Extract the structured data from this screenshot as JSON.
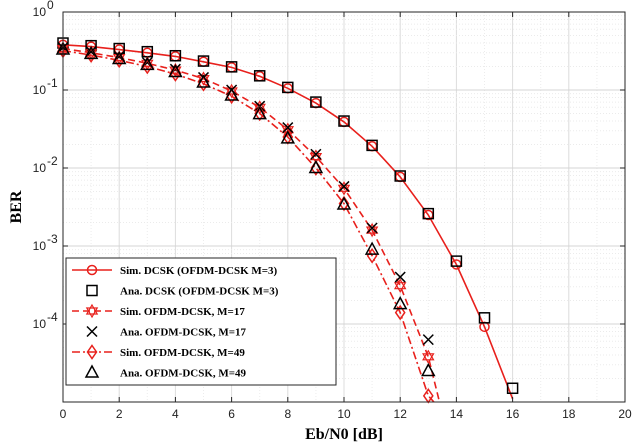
{
  "chart_data": {
    "type": "line",
    "xlabel": "Eb/N0 [dB]",
    "ylabel": "BER",
    "xlim": [
      0,
      20
    ],
    "ylim": [
      1e-05,
      1
    ],
    "yscale": "log",
    "grid": true,
    "legend_position": "bottom-left",
    "x_ticks": [
      0,
      2,
      4,
      6,
      8,
      10,
      12,
      14,
      16,
      18,
      20
    ],
    "x_tick_labels": [
      "0",
      "2",
      "4",
      "6",
      "8",
      "10",
      "12",
      "14",
      "16",
      "18",
      "20"
    ],
    "y_ticks": [
      0.0001,
      0.001,
      0.01,
      0.1,
      1
    ],
    "y_tick_labels": [
      {
        "base": "10",
        "exp": "-4"
      },
      {
        "base": "10",
        "exp": "-3"
      },
      {
        "base": "10",
        "exp": "-2"
      },
      {
        "base": "10",
        "exp": "-1"
      },
      {
        "base": "10",
        "exp": "0"
      }
    ],
    "series": [
      {
        "name": "Sim. DCSK (OFDM-DCSK M=3)",
        "color": "#e8201c",
        "line": "solid",
        "marker": "circle",
        "x": [
          0,
          1,
          2,
          3,
          4,
          5,
          6,
          7,
          8,
          9,
          10,
          11,
          12,
          13,
          14,
          15,
          16
        ],
        "y": [
          0.38,
          0.36,
          0.33,
          0.3,
          0.27,
          0.23,
          0.195,
          0.15,
          0.105,
          0.068,
          0.039,
          0.019,
          0.0077,
          0.0025,
          0.00058,
          9.2e-05,
          1.1e-05
        ]
      },
      {
        "name": "Ana. DCSK (OFDM-DCSK M=3)",
        "color": "#000000",
        "line": "none",
        "marker": "square",
        "x": [
          0,
          1,
          2,
          3,
          4,
          5,
          6,
          7,
          8,
          9,
          10,
          11,
          12,
          13,
          14,
          15,
          16
        ],
        "y": [
          0.4,
          0.37,
          0.34,
          0.31,
          0.275,
          0.235,
          0.198,
          0.152,
          0.108,
          0.07,
          0.04,
          0.0195,
          0.0079,
          0.0026,
          0.00064,
          0.00012,
          1.5e-05
        ]
      },
      {
        "name": "Sim. OFDM-DCSK, M=17",
        "color": "#e8201c",
        "line": "dashed",
        "marker": "hexagram",
        "x": [
          0,
          1,
          2,
          3,
          4,
          5,
          6,
          7,
          8,
          9,
          10,
          11,
          12,
          13,
          13.4
        ],
        "y": [
          0.34,
          0.3,
          0.26,
          0.22,
          0.18,
          0.14,
          0.097,
          0.06,
          0.031,
          0.014,
          0.0055,
          0.0016,
          0.00031,
          3.8e-05,
          1e-05
        ]
      },
      {
        "name": "Ana. OFDM-DCSK, M=17",
        "color": "#000000",
        "line": "none",
        "marker": "x",
        "x": [
          0,
          1,
          2,
          3,
          4,
          5,
          6,
          7,
          8,
          9,
          10,
          11,
          12,
          13
        ],
        "y": [
          0.35,
          0.31,
          0.27,
          0.225,
          0.185,
          0.145,
          0.1,
          0.062,
          0.033,
          0.015,
          0.0058,
          0.0017,
          0.0004,
          6.3e-05
        ]
      },
      {
        "name": "Sim. OFDM-DCSK, M=49",
        "color": "#e8201c",
        "line": "dashdot",
        "marker": "diamond",
        "x": [
          0,
          1,
          2,
          3,
          4,
          5,
          6,
          7,
          8,
          9,
          10,
          11,
          12,
          13,
          13.2
        ],
        "y": [
          0.32,
          0.28,
          0.24,
          0.2,
          0.16,
          0.12,
          0.083,
          0.05,
          0.025,
          0.01,
          0.0035,
          0.00075,
          0.00014,
          1.2e-05,
          1e-05
        ]
      },
      {
        "name": "Ana. OFDM-DCSK, M=49",
        "color": "#000000",
        "line": "none",
        "marker": "triangle",
        "x": [
          0,
          1,
          2,
          3,
          4,
          5,
          6,
          7,
          8,
          9,
          10,
          11,
          12,
          13
        ],
        "y": [
          0.33,
          0.29,
          0.25,
          0.21,
          0.17,
          0.125,
          0.085,
          0.049,
          0.024,
          0.01,
          0.0034,
          0.0009,
          0.00018,
          2.5e-05
        ]
      }
    ]
  }
}
